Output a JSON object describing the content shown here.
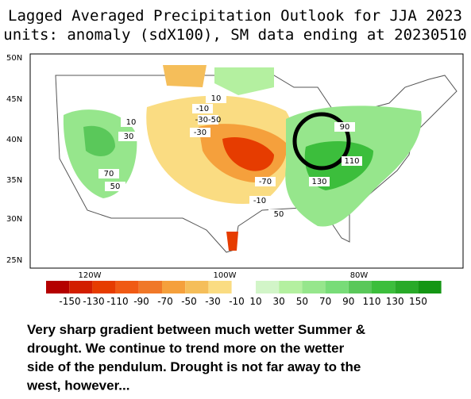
{
  "header": {
    "title": "Lagged Averaged Precipitation Outlook for JJA 2023",
    "subtitle": "units: anomaly (sdX100), SM data ending at 20230510"
  },
  "map": {
    "lat_labels": [
      "50N",
      "45N",
      "40N",
      "35N",
      "30N",
      "25N"
    ],
    "lon_labels": [
      "120W",
      "100W",
      "80W"
    ],
    "contour_labels": [
      "10",
      "-10",
      "-30-50",
      "-30",
      "10",
      "30",
      "90",
      "110",
      "70",
      "50",
      "-70",
      "130",
      "-10",
      "50"
    ]
  },
  "colorbar": {
    "dry": {
      "colors": [
        "#b40000",
        "#d21e00",
        "#e63c00",
        "#f05a14",
        "#f07828",
        "#f5a03c",
        "#f5be5a",
        "#fadc82"
      ],
      "labels": [
        "-150",
        "-130",
        "-110",
        "-90",
        "-70",
        "-50",
        "-30",
        "-10"
      ]
    },
    "wet": {
      "colors": [
        "#d2f5c8",
        "#b4f0a0",
        "#96e68c",
        "#78dc78",
        "#5ac85a",
        "#3cbe3c",
        "#28aa28",
        "#149614"
      ],
      "labels": [
        "10",
        "30",
        "50",
        "70",
        "90",
        "110",
        "130",
        "150"
      ]
    }
  },
  "caption": {
    "lines": [
      "Very sharp gradient between much wetter Summer &",
      "drought.  We continue to trend more on the wetter",
      "side of the pendulum.  Drought is not far away to the",
      "west, however..."
    ]
  }
}
